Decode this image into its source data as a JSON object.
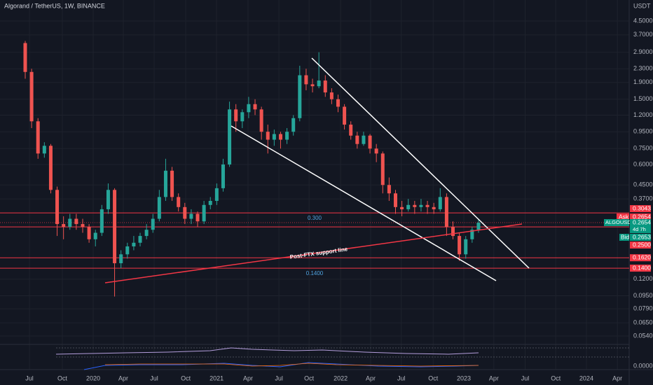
{
  "chart_data": {
    "type": "candlestick",
    "title": "Algorand / TetherUS, 1W, BINANCE",
    "currency": "USDT",
    "log_scale": true,
    "grid": true,
    "up_color": "#26a69a",
    "down_color": "#ef5350",
    "categories": [
      null,
      null,
      null,
      null,
      null,
      null,
      null,
      null,
      null,
      null,
      null,
      null,
      null,
      null,
      null,
      null,
      null,
      null,
      null,
      null,
      null,
      null,
      null,
      null,
      null,
      null,
      null,
      null,
      null,
      null,
      null,
      null,
      null,
      null,
      null,
      null,
      null,
      null,
      null,
      null,
      null,
      null,
      null,
      null,
      null,
      null,
      null,
      null,
      null,
      null,
      null,
      null,
      null,
      null,
      null,
      null,
      null,
      null,
      null,
      null,
      null,
      null,
      null,
      null,
      null,
      null,
      null,
      null,
      null,
      null,
      null,
      null
    ],
    "open": [
      3.3,
      2.2,
      1.1,
      0.7,
      0.78,
      0.42,
      0.26,
      0.25,
      0.28,
      0.26,
      0.25,
      0.21,
      0.23,
      0.32,
      0.42,
      0.15,
      0.17,
      0.19,
      0.2,
      0.22,
      0.24,
      0.28,
      0.38,
      0.55,
      0.38,
      0.33,
      0.28,
      0.3,
      0.27,
      0.34,
      0.36,
      0.43,
      0.6,
      1.3,
      1.1,
      1.25,
      1.4,
      1.3,
      0.95,
      0.85,
      0.92,
      0.85,
      0.95,
      1.15,
      2.1,
      1.85,
      1.8,
      1.95,
      1.65,
      1.5,
      1.35,
      1.05,
      0.9,
      0.8,
      0.9,
      0.75,
      0.7,
      0.45,
      0.4,
      0.33,
      0.32,
      0.34,
      0.33,
      0.34,
      0.33,
      0.32,
      0.38,
      0.25,
      0.22,
      0.17,
      0.21,
      0.24
    ],
    "high": [
      3.4,
      2.3,
      1.15,
      0.82,
      0.8,
      0.44,
      0.29,
      0.3,
      0.3,
      0.28,
      0.26,
      0.24,
      0.34,
      0.46,
      0.43,
      0.18,
      0.2,
      0.22,
      0.23,
      0.26,
      0.3,
      0.42,
      0.65,
      0.58,
      0.4,
      0.35,
      0.32,
      0.31,
      0.36,
      0.38,
      0.46,
      0.65,
      1.45,
      1.4,
      1.3,
      1.55,
      1.5,
      1.35,
      1.05,
      0.98,
      0.95,
      1.0,
      1.2,
      2.4,
      2.3,
      2.0,
      2.9,
      2.1,
      1.75,
      1.6,
      1.4,
      1.1,
      0.95,
      0.95,
      0.92,
      0.8,
      0.72,
      0.5,
      0.42,
      0.36,
      0.37,
      0.36,
      0.37,
      0.36,
      0.35,
      0.43,
      0.4,
      0.27,
      0.23,
      0.22,
      0.25,
      0.28
    ],
    "low": [
      2.0,
      1.0,
      0.65,
      0.66,
      0.4,
      0.22,
      0.21,
      0.24,
      0.24,
      0.23,
      0.2,
      0.19,
      0.22,
      0.3,
      0.094,
      0.14,
      0.16,
      0.18,
      0.19,
      0.21,
      0.23,
      0.27,
      0.36,
      0.36,
      0.31,
      0.26,
      0.26,
      0.25,
      0.26,
      0.32,
      0.34,
      0.41,
      0.58,
      0.95,
      1.0,
      1.15,
      1.2,
      0.85,
      0.7,
      0.78,
      0.75,
      0.8,
      0.9,
      1.1,
      1.7,
      1.65,
      1.75,
      1.55,
      1.4,
      1.25,
      0.98,
      0.85,
      0.75,
      0.78,
      0.7,
      0.62,
      0.4,
      0.36,
      0.3,
      0.29,
      0.31,
      0.3,
      0.31,
      0.3,
      0.3,
      0.31,
      0.22,
      0.21,
      0.155,
      0.16,
      0.2,
      0.23
    ],
    "close": [
      2.2,
      1.1,
      0.7,
      0.78,
      0.42,
      0.26,
      0.25,
      0.28,
      0.26,
      0.25,
      0.21,
      0.23,
      0.32,
      0.42,
      0.15,
      0.17,
      0.19,
      0.2,
      0.22,
      0.24,
      0.28,
      0.38,
      0.55,
      0.38,
      0.33,
      0.28,
      0.3,
      0.27,
      0.34,
      0.36,
      0.43,
      0.6,
      1.3,
      1.1,
      1.25,
      1.4,
      1.3,
      0.95,
      0.85,
      0.92,
      0.85,
      0.95,
      1.15,
      2.1,
      1.85,
      1.8,
      1.95,
      1.65,
      1.5,
      1.35,
      1.05,
      0.9,
      0.8,
      0.9,
      0.75,
      0.7,
      0.45,
      0.4,
      0.33,
      0.32,
      0.34,
      0.33,
      0.34,
      0.33,
      0.32,
      0.38,
      0.25,
      0.22,
      0.17,
      0.21,
      0.24,
      0.265
    ],
    "xlim": [
      -3.95,
      94.6
    ],
    "xticks": [
      {
        "value": 0.66,
        "label": "Jul"
      },
      {
        "value": 5.82,
        "label": "Oct"
      },
      {
        "value": 10.65,
        "label": "2020"
      },
      {
        "value": 15.37,
        "label": "Apr"
      },
      {
        "value": 20.2,
        "label": "Jul"
      },
      {
        "value": 25.14,
        "label": "Oct"
      },
      {
        "value": 29.97,
        "label": "2021"
      },
      {
        "value": 34.9,
        "label": "Apr"
      },
      {
        "value": 39.74,
        "label": "Jul"
      },
      {
        "value": 44.46,
        "label": "Oct"
      },
      {
        "value": 49.4,
        "label": "2022"
      },
      {
        "value": 54.1,
        "label": "Apr"
      },
      {
        "value": 58.9,
        "label": "Jul"
      },
      {
        "value": 63.9,
        "label": "Oct"
      },
      {
        "value": 68.7,
        "label": "2023"
      },
      {
        "value": 73.4,
        "label": "Apr"
      },
      {
        "value": 78.3,
        "label": "Jul"
      },
      {
        "value": 83.1,
        "label": "Oct"
      },
      {
        "value": 87.9,
        "label": "2024"
      },
      {
        "value": 92.75,
        "label": "Apr"
      }
    ],
    "ylim": [
      0.048,
      6.04
    ],
    "yticks": [
      {
        "value": 4.5,
        "label": "4.5000"
      },
      {
        "value": 3.7,
        "label": "3.7000"
      },
      {
        "value": 2.9,
        "label": "2.9000"
      },
      {
        "value": 2.3,
        "label": "2.3000"
      },
      {
        "value": 1.9,
        "label": "1.9000"
      },
      {
        "value": 1.5,
        "label": "1.5000"
      },
      {
        "value": 1.2,
        "label": "1.2000"
      },
      {
        "value": 0.95,
        "label": "0.9500"
      },
      {
        "value": 0.75,
        "label": "0.7500"
      },
      {
        "value": 0.6,
        "label": "0.6000"
      },
      {
        "value": 0.45,
        "label": "0.4500"
      },
      {
        "value": 0.37,
        "label": "0.3700"
      },
      {
        "value": 0.12,
        "label": "0.1200"
      },
      {
        "value": 0.095,
        "label": "0.0950"
      },
      {
        "value": 0.079,
        "label": "0.0790"
      },
      {
        "value": 0.065,
        "label": "0.0650"
      },
      {
        "value": 0.054,
        "label": "0.0540"
      }
    ],
    "levels": [
      0.3043,
      {
        "value": 0.25,
        "label": "0.2500"
      },
      {
        "value": 0.162,
        "label": "0.1620"
      },
      {
        "value": 0.14,
        "label": "0.1400"
      }
    ],
    "price_line": {
      "name": "ALGOUSDT",
      "value": 0.2654,
      "countdown": "4d 7h"
    },
    "ask": {
      "name": "Ask",
      "value": 0.2654
    },
    "bid": {
      "name": "Bid",
      "value": 0.2653
    },
    "annotations": [
      "0.300",
      "0.1400",
      "Post-FTX support line"
    ],
    "indicator_tick": {
      "value": 0,
      "label": "0.0000"
    }
  }
}
